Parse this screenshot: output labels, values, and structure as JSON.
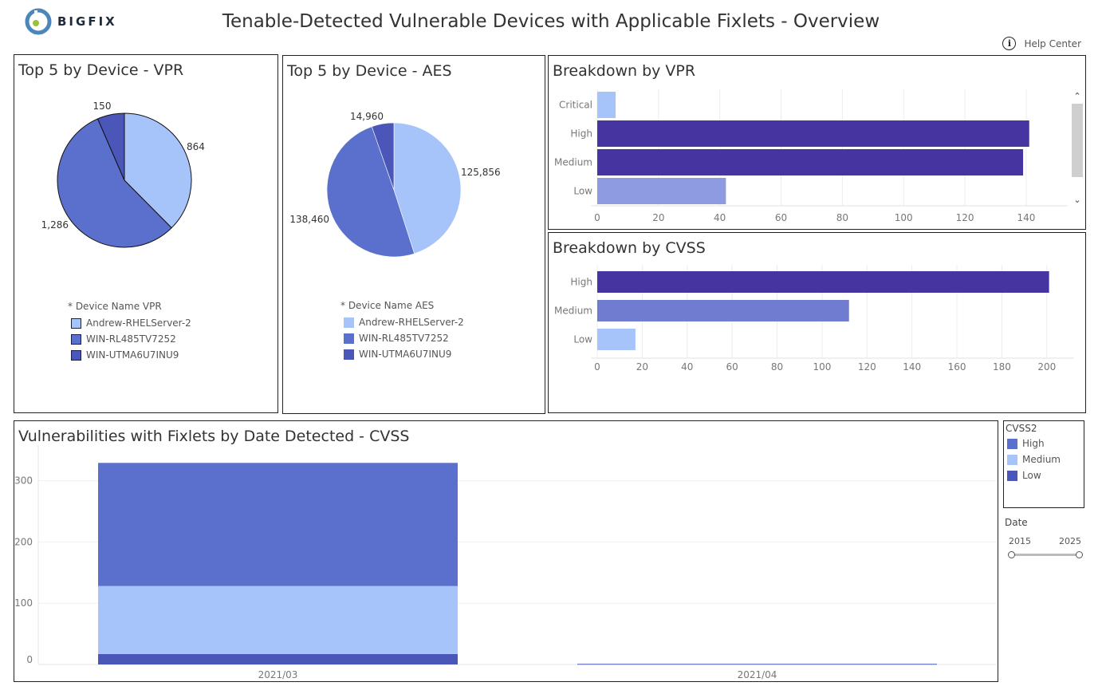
{
  "header": {
    "logo_text": "BIGFIX",
    "title": "Tenable-Detected Vulnerable Devices with Applicable Fixlets - Overview",
    "help_label": "Help Center",
    "help_icon_glyph": "i"
  },
  "colors": {
    "light": "#a6c3fa",
    "mid": "#5b70cc",
    "dark": "#4a57b8",
    "deep": "#4634a1",
    "lavender": "#8e9be0",
    "cvss_medium_bar": "#6f7ccf"
  },
  "vpr_pie": {
    "title": "Top 5 by Device - VPR",
    "legend_title": "* Device Name VPR",
    "legend": [
      {
        "label": "Andrew-RHELServer-2",
        "color": "#a6c3fa"
      },
      {
        "label": "WIN-RL485TV7252",
        "color": "#5b70cc"
      },
      {
        "label": "WIN-UTMA6U7INU9",
        "color": "#4a57b8"
      }
    ]
  },
  "aes_pie": {
    "title": "Top 5 by Device - AES",
    "legend_title": "* Device Name AES",
    "legend": [
      {
        "label": "Andrew-RHELServer-2",
        "color": "#a6c3fa"
      },
      {
        "label": "WIN-RL485TV7252",
        "color": "#5b70cc"
      },
      {
        "label": "WIN-UTMA6U7INU9",
        "color": "#4a57b8"
      }
    ]
  },
  "vpr_bar": {
    "title": "Breakdown by VPR",
    "scroll_up": "⌃",
    "scroll_down": "⌄"
  },
  "cvss_bar": {
    "title": "Breakdown by CVSS"
  },
  "date_chart": {
    "title": "Vulnerabilities with Fixlets by Date Detected - CVSS"
  },
  "cvss_legend": {
    "title": "CVSS2",
    "items": [
      {
        "label": "High",
        "color": "#5b70cc"
      },
      {
        "label": "Medium",
        "color": "#a6c3fa"
      },
      {
        "label": "Low",
        "color": "#4a57b8"
      }
    ]
  },
  "date_filter": {
    "title": "Date",
    "min": "2015",
    "max": "2025"
  },
  "chart_data": [
    {
      "type": "pie",
      "title": "Top 5 by Device - VPR",
      "labels": [
        "Andrew-RHELServer-2",
        "WIN-RL485TV7252",
        "WIN-UTMA6U7INU9"
      ],
      "values": [
        864,
        1286,
        150
      ],
      "value_labels": [
        "864",
        "1,286",
        "150"
      ],
      "colors": [
        "#a6c3fa",
        "#5b70cc",
        "#4a57b8"
      ]
    },
    {
      "type": "pie",
      "title": "Top 5 by Device - AES",
      "labels": [
        "Andrew-RHELServer-2",
        "WIN-RL485TV7252",
        "WIN-UTMA6U7INU9"
      ],
      "values": [
        125856,
        138460,
        14960
      ],
      "value_labels": [
        "125,856",
        "138,460",
        "14,960"
      ],
      "colors": [
        "#a6c3fa",
        "#5b70cc",
        "#4a57b8"
      ]
    },
    {
      "type": "bar",
      "orientation": "horizontal",
      "title": "Breakdown by VPR",
      "categories": [
        "Critical",
        "High",
        "Medium",
        "Low"
      ],
      "values": [
        6,
        141,
        139,
        42
      ],
      "colors": [
        "#a6c3fa",
        "#4634a1",
        "#4634a1",
        "#8e9be0"
      ],
      "xlim": [
        0,
        152
      ],
      "ticks": [
        0,
        20,
        40,
        60,
        80,
        100,
        120,
        140
      ]
    },
    {
      "type": "bar",
      "orientation": "horizontal",
      "title": "Breakdown by CVSS",
      "categories": [
        "High",
        "Medium",
        "Low"
      ],
      "values": [
        201,
        112,
        17
      ],
      "colors": [
        "#4634a1",
        "#6f7ccf",
        "#a6c3fa"
      ],
      "xlim": [
        0,
        210
      ],
      "ticks": [
        0,
        20,
        40,
        60,
        80,
        100,
        120,
        140,
        160,
        180,
        200
      ]
    },
    {
      "type": "bar",
      "stacked": true,
      "title": "Vulnerabilities with Fixlets by Date Detected - CVSS",
      "categories": [
        "2021/03",
        "2021/04"
      ],
      "series": [
        {
          "name": "Low",
          "values": [
            17,
            1
          ],
          "color": "#4a57b8"
        },
        {
          "name": "Medium",
          "values": [
            111,
            0
          ],
          "color": "#a6c3fa"
        },
        {
          "name": "High",
          "values": [
            201,
            0
          ],
          "color": "#5b70cc"
        }
      ],
      "ylim": [
        0,
        345
      ],
      "yticks": [
        0,
        100,
        200,
        300
      ]
    }
  ]
}
